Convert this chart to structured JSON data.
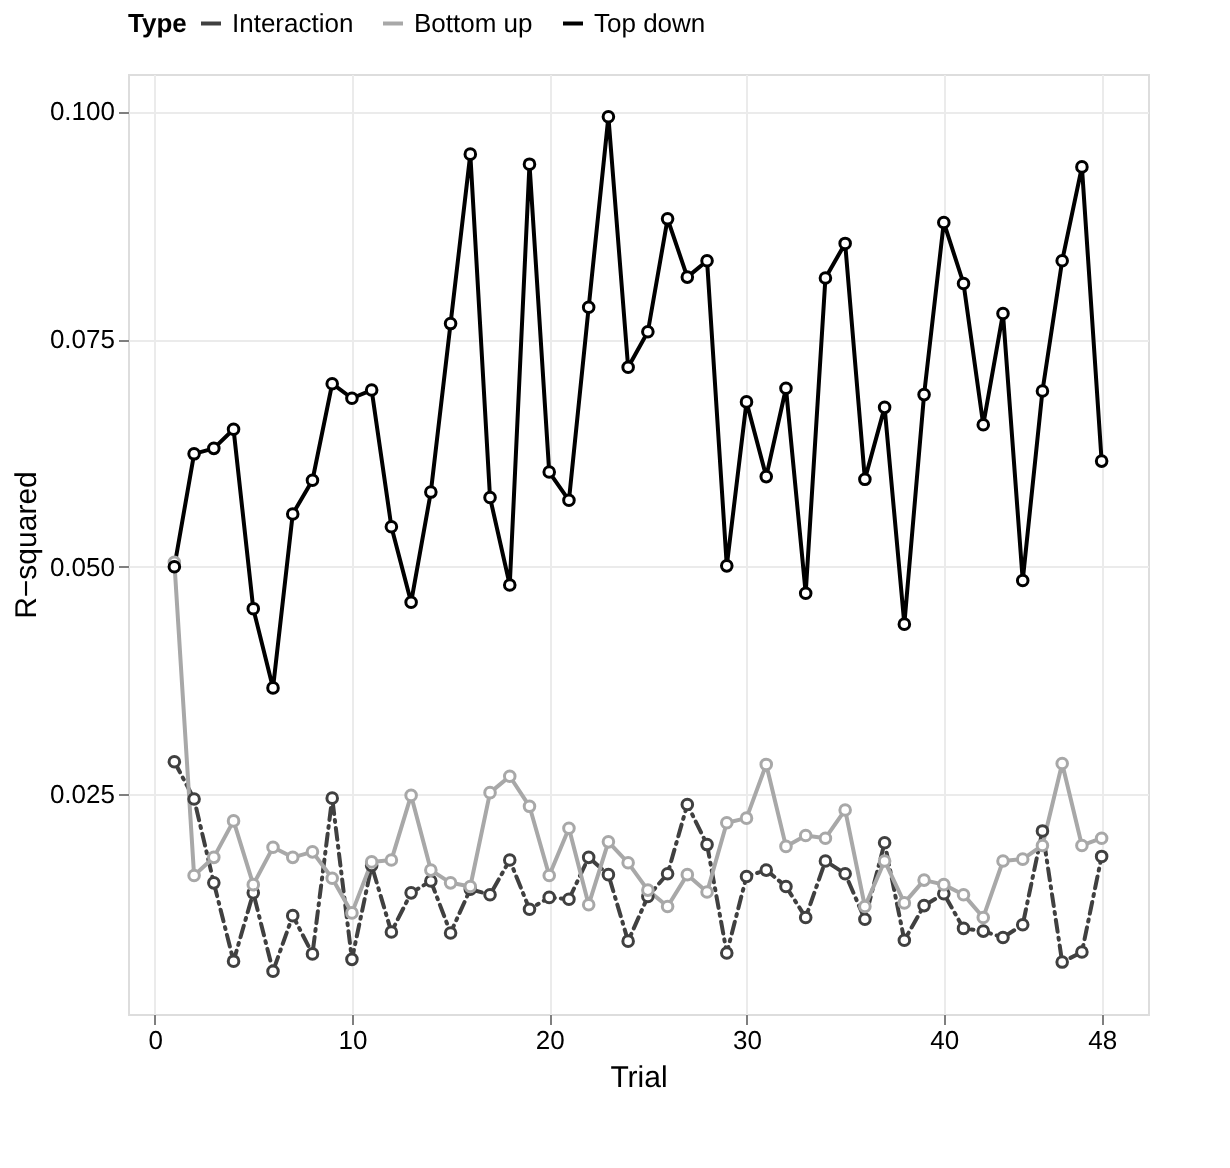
{
  "chart_data": {
    "type": "line",
    "xlabel": "Trial",
    "ylabel": "R−squared",
    "legend_title": "Type",
    "legend": "top",
    "grid": true,
    "marker": "circle",
    "x": [
      1,
      2,
      3,
      4,
      5,
      6,
      7,
      8,
      9,
      10,
      11,
      12,
      13,
      14,
      15,
      16,
      17,
      18,
      19,
      20,
      21,
      22,
      23,
      24,
      25,
      26,
      27,
      28,
      29,
      30,
      31,
      32,
      33,
      34,
      35,
      36,
      37,
      38,
      39,
      40,
      41,
      42,
      43,
      44,
      45,
      46,
      47,
      48
    ],
    "xlim": [
      -1.35,
      50.35
    ],
    "xticks": [
      0,
      10,
      20,
      30,
      40,
      48
    ],
    "ylim": [
      0.0009,
      0.1041
    ],
    "yticks": [
      {
        "value": 0.025,
        "label": "0.025"
      },
      {
        "value": 0.05,
        "label": "0.050"
      },
      {
        "value": 0.075,
        "label": "0.075"
      },
      {
        "value": 0.1,
        "label": "0.100"
      }
    ],
    "series": [
      {
        "name": "Interaction",
        "color": "#404040",
        "line_style": "dashed",
        "values": [
          0.0286,
          0.0245,
          0.0153,
          0.0067,
          0.0142,
          0.0056,
          0.0117,
          0.0075,
          0.0246,
          0.0069,
          0.0172,
          0.0099,
          0.0142,
          0.0155,
          0.0098,
          0.0146,
          0.014,
          0.0178,
          0.0124,
          0.0137,
          0.0135,
          0.0181,
          0.0162,
          0.0089,
          0.0138,
          0.0163,
          0.0239,
          0.0195,
          0.0076,
          0.016,
          0.0167,
          0.0149,
          0.0115,
          0.0177,
          0.0163,
          0.0113,
          0.0197,
          0.009,
          0.0128,
          0.0141,
          0.0103,
          0.01,
          0.0093,
          0.0107,
          0.021,
          0.0066,
          0.0077,
          0.0182
        ]
      },
      {
        "name": "Bottom up",
        "color": "#a8a8a8",
        "line_style": "solid",
        "values": [
          0.0505,
          0.0161,
          0.0181,
          0.0221,
          0.0151,
          0.0192,
          0.0181,
          0.0187,
          0.0158,
          0.012,
          0.0176,
          0.0178,
          0.0249,
          0.0167,
          0.0153,
          0.0149,
          0.0252,
          0.027,
          0.0237,
          0.0161,
          0.0213,
          0.0129,
          0.0198,
          0.0175,
          0.0145,
          0.0127,
          0.0162,
          0.0143,
          0.0219,
          0.0224,
          0.0283,
          0.0193,
          0.0205,
          0.0202,
          0.0233,
          0.0127,
          0.0177,
          0.0131,
          0.0156,
          0.0151,
          0.014,
          0.0115,
          0.0177,
          0.0179,
          0.0194,
          0.0284,
          0.0194,
          0.0202
        ]
      },
      {
        "name": "Top down",
        "color": "#000000",
        "line_style": "solid",
        "values": [
          0.05,
          0.0624,
          0.063,
          0.0651,
          0.0454,
          0.0367,
          0.0558,
          0.0595,
          0.0701,
          0.0685,
          0.0694,
          0.0544,
          0.0461,
          0.0582,
          0.0767,
          0.0953,
          0.0576,
          0.048,
          0.0942,
          0.0604,
          0.0573,
          0.0785,
          0.0994,
          0.0719,
          0.0758,
          0.0882,
          0.0818,
          0.0836,
          0.0501,
          0.0681,
          0.0599,
          0.0696,
          0.0471,
          0.0817,
          0.0855,
          0.0596,
          0.0675,
          0.0437,
          0.0689,
          0.0878,
          0.0811,
          0.0656,
          0.0778,
          0.0485,
          0.0693,
          0.0836,
          0.0939,
          0.0616
        ]
      }
    ]
  }
}
